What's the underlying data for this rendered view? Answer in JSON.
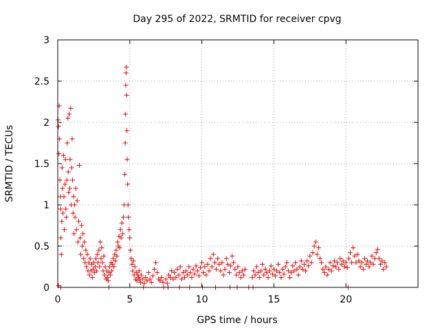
{
  "chart_data": {
    "type": "scatter",
    "title": "Day 295 of 2022, SRMTID for receiver cpvg",
    "xlabel": "GPS time / hours",
    "ylabel": "SRMTID / TECUs",
    "xlim": [
      0,
      25
    ],
    "ylim": [
      0,
      3
    ],
    "xticks": [
      0,
      5,
      10,
      15,
      20
    ],
    "xtick_labels": [
      "0",
      "5",
      "10",
      "15",
      "20"
    ],
    "yticks": [
      0,
      0.5,
      1,
      1.5,
      2,
      2.5,
      3
    ],
    "ytick_labels": [
      "0",
      "0.5",
      "1",
      "1.5",
      "2",
      "2.5",
      "3"
    ],
    "grid": true,
    "marker": "+",
    "color": "#e00000",
    "series": [
      {
        "name": "SRMTID",
        "points": [
          [
            0.02,
            2.03
          ],
          [
            0.05,
            1.95
          ],
          [
            0.08,
            1.62
          ],
          [
            0.1,
            2.2
          ],
          [
            0.12,
            1.8
          ],
          [
            0.15,
            1.3
          ],
          [
            0.18,
            1.1
          ],
          [
            0.2,
            0.95
          ],
          [
            0.22,
            0.6
          ],
          [
            0.25,
            0.4
          ],
          [
            0.28,
            0.8
          ],
          [
            0.3,
            1.45
          ],
          [
            0.33,
            1.2
          ],
          [
            0.36,
            0.9
          ],
          [
            0.4,
            1.6
          ],
          [
            0.43,
            1.1
          ],
          [
            0.46,
            0.7
          ],
          [
            0.5,
            1.25
          ],
          [
            0.53,
            1.55
          ],
          [
            0.56,
            0.95
          ],
          [
            0.6,
            0.85
          ],
          [
            0.63,
            1.3
          ],
          [
            0.66,
            1.75
          ],
          [
            0.7,
            2.05
          ],
          [
            0.73,
            1.4
          ],
          [
            0.76,
            1.15
          ],
          [
            0.8,
            2.1
          ],
          [
            0.83,
            1.2
          ],
          [
            0.86,
            1.55
          ],
          [
            0.9,
            2.17
          ],
          [
            0.93,
            1.0
          ],
          [
            0.96,
            1.45
          ],
          [
            1.0,
            1.8
          ],
          [
            1.03,
            1.3
          ],
          [
            1.06,
            0.9
          ],
          [
            1.1,
            1.1
          ],
          [
            1.13,
            0.65
          ],
          [
            1.16,
            1.0
          ],
          [
            1.2,
            0.85
          ],
          [
            1.25,
            1.2
          ],
          [
            1.3,
            0.7
          ],
          [
            1.35,
            1.05
          ],
          [
            1.4,
            0.55
          ],
          [
            1.45,
            0.8
          ],
          [
            1.5,
            1.48
          ],
          [
            1.55,
            0.6
          ],
          [
            1.6,
            0.4
          ],
          [
            1.65,
            0.75
          ],
          [
            1.7,
            0.5
          ],
          [
            1.75,
            0.65
          ],
          [
            1.8,
            0.35
          ],
          [
            1.85,
            0.55
          ],
          [
            1.9,
            0.3
          ],
          [
            1.95,
            0.45
          ],
          [
            2.0,
            0.25
          ],
          [
            2.05,
            0.4
          ],
          [
            2.1,
            0.2
          ],
          [
            2.15,
            0.3
          ],
          [
            2.2,
            0.15
          ],
          [
            2.25,
            0.35
          ],
          [
            2.3,
            0.2
          ],
          [
            2.35,
            0.28
          ],
          [
            2.4,
            0.12
          ],
          [
            2.45,
            0.22
          ],
          [
            2.5,
            0.3
          ],
          [
            2.55,
            0.18
          ],
          [
            2.6,
            0.25
          ],
          [
            2.65,
            0.35
          ],
          [
            2.7,
            0.2
          ],
          [
            2.75,
            0.4
          ],
          [
            2.8,
            0.3
          ],
          [
            2.85,
            0.45
          ],
          [
            2.9,
            0.25
          ],
          [
            2.95,
            0.55
          ],
          [
            3.0,
            0.35
          ],
          [
            3.05,
            0.48
          ],
          [
            3.1,
            0.3
          ],
          [
            3.15,
            0.2
          ],
          [
            3.2,
            0.38
          ],
          [
            3.25,
            0.15
          ],
          [
            3.3,
            0.25
          ],
          [
            3.35,
            0.1
          ],
          [
            3.4,
            0.2
          ],
          [
            3.45,
            0.12
          ],
          [
            3.5,
            0.08
          ],
          [
            3.55,
            0.18
          ],
          [
            3.6,
            0.25
          ],
          [
            3.65,
            0.15
          ],
          [
            3.7,
            0.3
          ],
          [
            3.75,
            0.2
          ],
          [
            3.8,
            0.28
          ],
          [
            3.85,
            0.35
          ],
          [
            3.9,
            0.25
          ],
          [
            3.95,
            0.4
          ],
          [
            4.0,
            0.32
          ],
          [
            4.05,
            0.45
          ],
          [
            4.1,
            0.38
          ],
          [
            4.15,
            0.55
          ],
          [
            4.2,
            0.5
          ],
          [
            4.25,
            0.62
          ],
          [
            4.3,
            0.48
          ],
          [
            4.35,
            0.7
          ],
          [
            4.4,
            0.6
          ],
          [
            4.45,
            0.78
          ],
          [
            4.5,
            0.65
          ],
          [
            4.55,
            0.85
          ],
          [
            4.6,
            1.0
          ],
          [
            4.65,
            1.37
          ],
          [
            4.68,
            1.75
          ],
          [
            4.7,
            2.1
          ],
          [
            4.72,
            2.45
          ],
          [
            4.74,
            2.6
          ],
          [
            4.76,
            2.67
          ],
          [
            4.78,
            2.33
          ],
          [
            4.8,
            1.9
          ],
          [
            4.82,
            1.55
          ],
          [
            4.85,
            1.25
          ],
          [
            4.88,
            1.0
          ],
          [
            4.9,
            0.85
          ],
          [
            4.95,
            0.7
          ],
          [
            5.0,
            0.6
          ],
          [
            5.05,
            0.45
          ],
          [
            5.1,
            0.35
          ],
          [
            5.15,
            0.28
          ],
          [
            5.2,
            0.2
          ],
          [
            5.25,
            0.32
          ],
          [
            5.3,
            0.15
          ],
          [
            5.35,
            0.25
          ],
          [
            5.4,
            0.1
          ],
          [
            5.45,
            0.18
          ],
          [
            5.5,
            0.08
          ],
          [
            5.55,
            0.15
          ],
          [
            5.6,
            0.12
          ],
          [
            5.65,
            0.2
          ],
          [
            5.7,
            0.1
          ],
          [
            5.75,
            0.06
          ],
          [
            5.8,
            0.15
          ],
          [
            5.9,
            0.1
          ],
          [
            6.0,
            0.05
          ],
          [
            6.1,
            0.12
          ],
          [
            6.2,
            0.08
          ],
          [
            6.3,
            0.18
          ],
          [
            6.4,
            0.1
          ],
          [
            6.5,
            0.06
          ],
          [
            6.6,
            0.14
          ],
          [
            6.7,
            0.22
          ],
          [
            6.8,
            0.3
          ],
          [
            6.9,
            0.18
          ],
          [
            7.0,
            0.1
          ],
          [
            7.1,
            0.08
          ],
          [
            7.2,
            0.12
          ],
          [
            7.3,
            0.06
          ],
          [
            7.5,
            0.1
          ],
          [
            7.6,
            0.05
          ],
          [
            7.7,
            0.15
          ],
          [
            7.8,
            0.12
          ],
          [
            7.9,
            0.2
          ],
          [
            8.0,
            0.1
          ],
          [
            8.1,
            0.18
          ],
          [
            8.2,
            0.12
          ],
          [
            8.3,
            0.22
          ],
          [
            8.4,
            0.15
          ],
          [
            8.5,
            0.25
          ],
          [
            8.6,
            0.1
          ],
          [
            8.7,
            0.18
          ],
          [
            8.8,
            0.12
          ],
          [
            8.9,
            0.2
          ],
          [
            9.0,
            0.15
          ],
          [
            9.1,
            0.25
          ],
          [
            9.2,
            0.18
          ],
          [
            9.3,
            0.12
          ],
          [
            9.4,
            0.22
          ],
          [
            9.5,
            0.16
          ],
          [
            9.6,
            0.26
          ],
          [
            9.7,
            0.2
          ],
          [
            9.8,
            0.14
          ],
          [
            9.9,
            0.24
          ],
          [
            10.0,
            0.3
          ],
          [
            10.1,
            0.18
          ],
          [
            10.2,
            0.25
          ],
          [
            10.3,
            0.15
          ],
          [
            10.4,
            0.28
          ],
          [
            10.5,
            0.2
          ],
          [
            10.6,
            0.35
          ],
          [
            10.7,
            0.25
          ],
          [
            10.8,
            0.4
          ],
          [
            10.9,
            0.3
          ],
          [
            11.0,
            0.22
          ],
          [
            11.1,
            0.35
          ],
          [
            11.2,
            0.28
          ],
          [
            11.3,
            0.2
          ],
          [
            11.4,
            0.3
          ],
          [
            11.5,
            0.15
          ],
          [
            11.6,
            0.22
          ],
          [
            11.7,
            0.35
          ],
          [
            11.8,
            0.28
          ],
          [
            11.9,
            0.18
          ],
          [
            12.0,
            0.26
          ],
          [
            12.1,
            0.38
          ],
          [
            12.2,
            0.3
          ],
          [
            12.3,
            0.22
          ],
          [
            12.4,
            0.15
          ],
          [
            12.5,
            0.25
          ],
          [
            12.6,
            0.18
          ],
          [
            12.7,
            0.12
          ],
          [
            12.8,
            0.2
          ],
          [
            12.9,
            0.15
          ],
          [
            13.0,
            0.22
          ],
          [
            13.5,
            0.12
          ],
          [
            13.6,
            0.2
          ],
          [
            13.7,
            0.15
          ],
          [
            13.8,
            0.25
          ],
          [
            13.9,
            0.18
          ],
          [
            14.0,
            0.12
          ],
          [
            14.1,
            0.2
          ],
          [
            14.2,
            0.28
          ],
          [
            14.3,
            0.15
          ],
          [
            14.4,
            0.22
          ],
          [
            14.5,
            0.18
          ],
          [
            14.6,
            0.12
          ],
          [
            14.7,
            0.2
          ],
          [
            14.8,
            0.26
          ],
          [
            14.9,
            0.16
          ],
          [
            15.0,
            0.22
          ],
          [
            15.1,
            0.14
          ],
          [
            15.2,
            0.2
          ],
          [
            15.3,
            0.28
          ],
          [
            15.4,
            0.18
          ],
          [
            15.5,
            0.12
          ],
          [
            15.6,
            0.22
          ],
          [
            15.7,
            0.16
          ],
          [
            15.8,
            0.25
          ],
          [
            15.9,
            0.3
          ],
          [
            16.0,
            0.2
          ],
          [
            16.1,
            0.12
          ],
          [
            16.2,
            0.18
          ],
          [
            16.3,
            0.26
          ],
          [
            16.4,
            0.2
          ],
          [
            16.5,
            0.3
          ],
          [
            16.6,
            0.22
          ],
          [
            16.7,
            0.15
          ],
          [
            16.8,
            0.25
          ],
          [
            16.9,
            0.32
          ],
          [
            17.0,
            0.22
          ],
          [
            17.1,
            0.28
          ],
          [
            17.2,
            0.2
          ],
          [
            17.3,
            0.32
          ],
          [
            17.4,
            0.26
          ],
          [
            17.5,
            0.38
          ],
          [
            17.6,
            0.3
          ],
          [
            17.7,
            0.42
          ],
          [
            17.8,
            0.5
          ],
          [
            17.9,
            0.55
          ],
          [
            18.0,
            0.4
          ],
          [
            18.1,
            0.48
          ],
          [
            18.2,
            0.35
          ],
          [
            18.3,
            0.3
          ],
          [
            18.4,
            0.22
          ],
          [
            18.5,
            0.18
          ],
          [
            18.6,
            0.25
          ],
          [
            18.7,
            0.15
          ],
          [
            18.8,
            0.22
          ],
          [
            18.9,
            0.3
          ],
          [
            19.0,
            0.2
          ],
          [
            19.1,
            0.26
          ],
          [
            19.2,
            0.32
          ],
          [
            19.3,
            0.25
          ],
          [
            19.4,
            0.3
          ],
          [
            19.5,
            0.22
          ],
          [
            19.6,
            0.35
          ],
          [
            19.7,
            0.28
          ],
          [
            19.8,
            0.32
          ],
          [
            19.9,
            0.25
          ],
          [
            20.0,
            0.3
          ],
          [
            20.1,
            0.24
          ],
          [
            20.2,
            0.35
          ],
          [
            20.3,
            0.42
          ],
          [
            20.4,
            0.3
          ],
          [
            20.5,
            0.48
          ],
          [
            20.6,
            0.38
          ],
          [
            20.7,
            0.3
          ],
          [
            20.8,
            0.4
          ],
          [
            20.9,
            0.32
          ],
          [
            21.0,
            0.25
          ],
          [
            21.1,
            0.3
          ],
          [
            21.2,
            0.22
          ],
          [
            21.3,
            0.35
          ],
          [
            21.4,
            0.28
          ],
          [
            21.5,
            0.32
          ],
          [
            21.6,
            0.25
          ],
          [
            21.7,
            0.3
          ],
          [
            21.8,
            0.38
          ],
          [
            21.9,
            0.28
          ],
          [
            22.0,
            0.35
          ],
          [
            22.1,
            0.42
          ],
          [
            22.2,
            0.46
          ],
          [
            22.3,
            0.35
          ],
          [
            22.4,
            0.28
          ],
          [
            22.5,
            0.32
          ],
          [
            22.6,
            0.22
          ],
          [
            22.7,
            0.3
          ],
          [
            22.8,
            0.25
          ],
          [
            0.05,
            0.02
          ],
          [
            0.22,
            0.0
          ],
          [
            3.55,
            0.0
          ],
          [
            5.95,
            0.0
          ],
          [
            7.35,
            0.0
          ],
          [
            7.65,
            0.0
          ],
          [
            8.45,
            0.0
          ],
          [
            9.15,
            0.0
          ],
          [
            10.05,
            0.0
          ],
          [
            10.95,
            0.0
          ],
          [
            11.95,
            0.0
          ],
          [
            12.45,
            0.0
          ],
          [
            13.25,
            0.0
          ],
          [
            13.55,
            0.0
          ],
          [
            20.15,
            0.0
          ]
        ]
      }
    ]
  }
}
